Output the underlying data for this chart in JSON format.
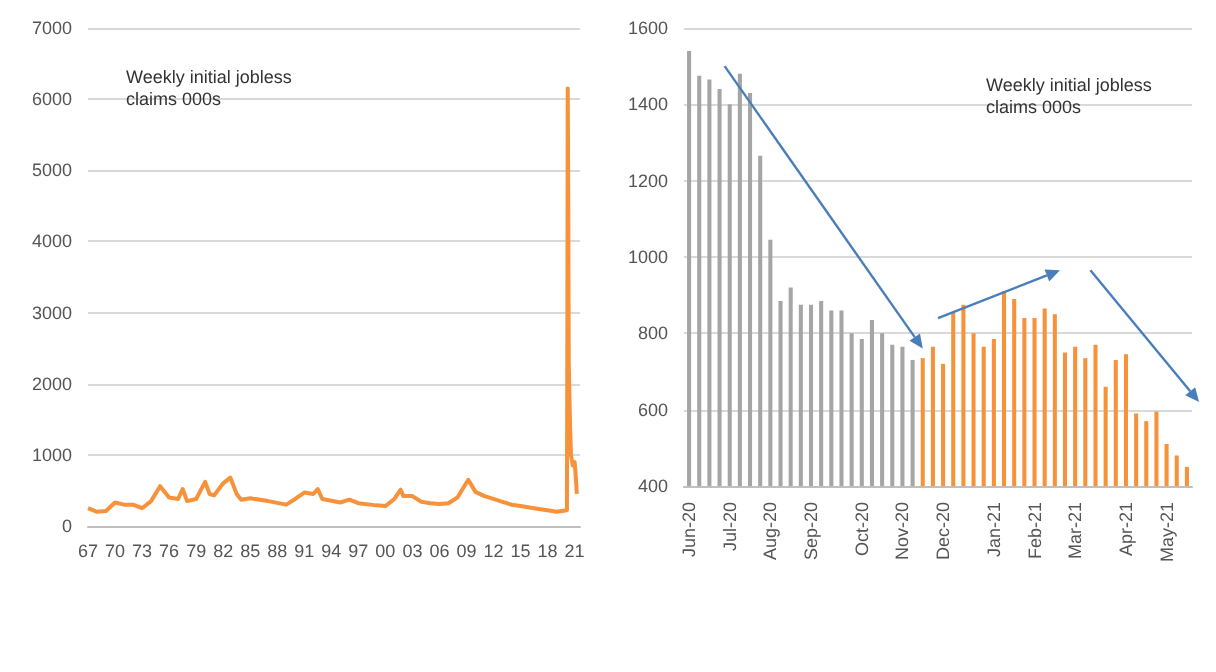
{
  "chart_data": [
    {
      "type": "line",
      "title": "Weekly initial jobless claims 000s",
      "x": [
        1967,
        1968,
        1969,
        1970,
        1971,
        1972,
        1973,
        1974,
        1975,
        1976,
        1977,
        1977.5,
        1978,
        1979,
        1980,
        1980.5,
        1981,
        1982,
        1982.8,
        1983.5,
        1984,
        1985,
        1987,
        1989,
        1990,
        1991,
        1992,
        1992.5,
        1993,
        1995,
        1996,
        1997,
        1999,
        2000,
        2001,
        2001.7,
        2002,
        2003,
        2004,
        2005,
        2006,
        2007,
        2008,
        2009.2,
        2010,
        2011,
        2012,
        2013,
        2014,
        2015,
        2016,
        2017,
        2018,
        2019,
        2020.15,
        2020.2,
        2020.24,
        2020.3,
        2020.35,
        2020.4,
        2020.5,
        2020.6,
        2020.8,
        2021.0,
        2021.1,
        2021.25
      ],
      "series": [
        {
          "color": "#f7923a",
          "values": [
            250,
            200,
            210,
            330,
            300,
            300,
            250,
            350,
            560,
            400,
            380,
            520,
            350,
            380,
            620,
            450,
            430,
            600,
            680,
            450,
            370,
            390,
            350,
            300,
            380,
            470,
            450,
            520,
            380,
            330,
            370,
            320,
            290,
            280,
            380,
            510,
            420,
            420,
            340,
            320,
            310,
            320,
            400,
            650,
            480,
            420,
            380,
            340,
            300,
            280,
            260,
            240,
            220,
            200,
            220,
            2900,
            6150,
            4500,
            2300,
            2000,
            1400,
            1000,
            850,
            900,
            750,
            450
          ]
        }
      ],
      "xlim": [
        1967,
        2021.6
      ],
      "xticks": [
        {
          "value": 1967,
          "label": "67"
        },
        {
          "value": 1970,
          "label": "70"
        },
        {
          "value": 1973,
          "label": "73"
        },
        {
          "value": 1976,
          "label": "76"
        },
        {
          "value": 1979,
          "label": "79"
        },
        {
          "value": 1982,
          "label": "82"
        },
        {
          "value": 1985,
          "label": "85"
        },
        {
          "value": 1988,
          "label": "88"
        },
        {
          "value": 1991,
          "label": "91"
        },
        {
          "value": 1994,
          "label": "94"
        },
        {
          "value": 1997,
          "label": "97"
        },
        {
          "value": 2000,
          "label": "00"
        },
        {
          "value": 2003,
          "label": "03"
        },
        {
          "value": 2006,
          "label": "06"
        },
        {
          "value": 2009,
          "label": "09"
        },
        {
          "value": 2012,
          "label": "12"
        },
        {
          "value": 2015,
          "label": "15"
        },
        {
          "value": 2018,
          "label": "18"
        },
        {
          "value": 2021,
          "label": "21"
        }
      ],
      "ylim": [
        0,
        7000
      ],
      "yticks": [
        0,
        1000,
        2000,
        3000,
        4000,
        5000,
        6000,
        7000
      ],
      "grid": "y"
    },
    {
      "type": "bar",
      "title": "Weekly initial jobless claims 000s",
      "categories": [
        "Jun-20",
        null,
        null,
        null,
        "Jul-20",
        null,
        null,
        null,
        "Aug-20",
        null,
        null,
        null,
        "Sep-20",
        null,
        null,
        null,
        null,
        "Oct-20",
        null,
        null,
        null,
        "Nov-20",
        null,
        null,
        null,
        "Dec-20",
        null,
        null,
        null,
        null,
        "Jan-21",
        null,
        null,
        null,
        "Feb-21",
        null,
        null,
        null,
        "Mar-21",
        null,
        null,
        null,
        null,
        "Apr-21",
        null,
        null,
        null,
        "May-21",
        null,
        null
      ],
      "series": [
        {
          "color": "#a5a5a5",
          "values": [
            1540,
            1475,
            1465,
            1440,
            1400,
            1480,
            1430,
            1265,
            1045,
            885,
            920,
            875,
            875,
            885,
            860,
            860,
            800,
            785,
            835,
            800,
            770,
            765,
            730,
            null,
            null,
            null,
            null,
            null,
            null,
            null,
            null,
            null,
            null,
            null,
            null,
            null,
            null,
            null,
            null,
            null,
            null,
            null,
            null,
            null,
            null,
            null,
            null,
            null,
            null,
            null
          ]
        },
        {
          "color": "#f7923a",
          "values": [
            null,
            null,
            null,
            null,
            null,
            null,
            null,
            null,
            null,
            null,
            null,
            null,
            null,
            null,
            null,
            null,
            null,
            null,
            null,
            null,
            null,
            null,
            null,
            735,
            765,
            720,
            855,
            875,
            800,
            765,
            785,
            910,
            890,
            840,
            840,
            865,
            850,
            750,
            765,
            735,
            770,
            660,
            730,
            745,
            590,
            570,
            595,
            510,
            480,
            450
          ]
        }
      ],
      "ylim": [
        400,
        1600
      ],
      "yticks": [
        400,
        600,
        800,
        1000,
        1200,
        1400,
        1600
      ],
      "grid": "y"
    }
  ]
}
